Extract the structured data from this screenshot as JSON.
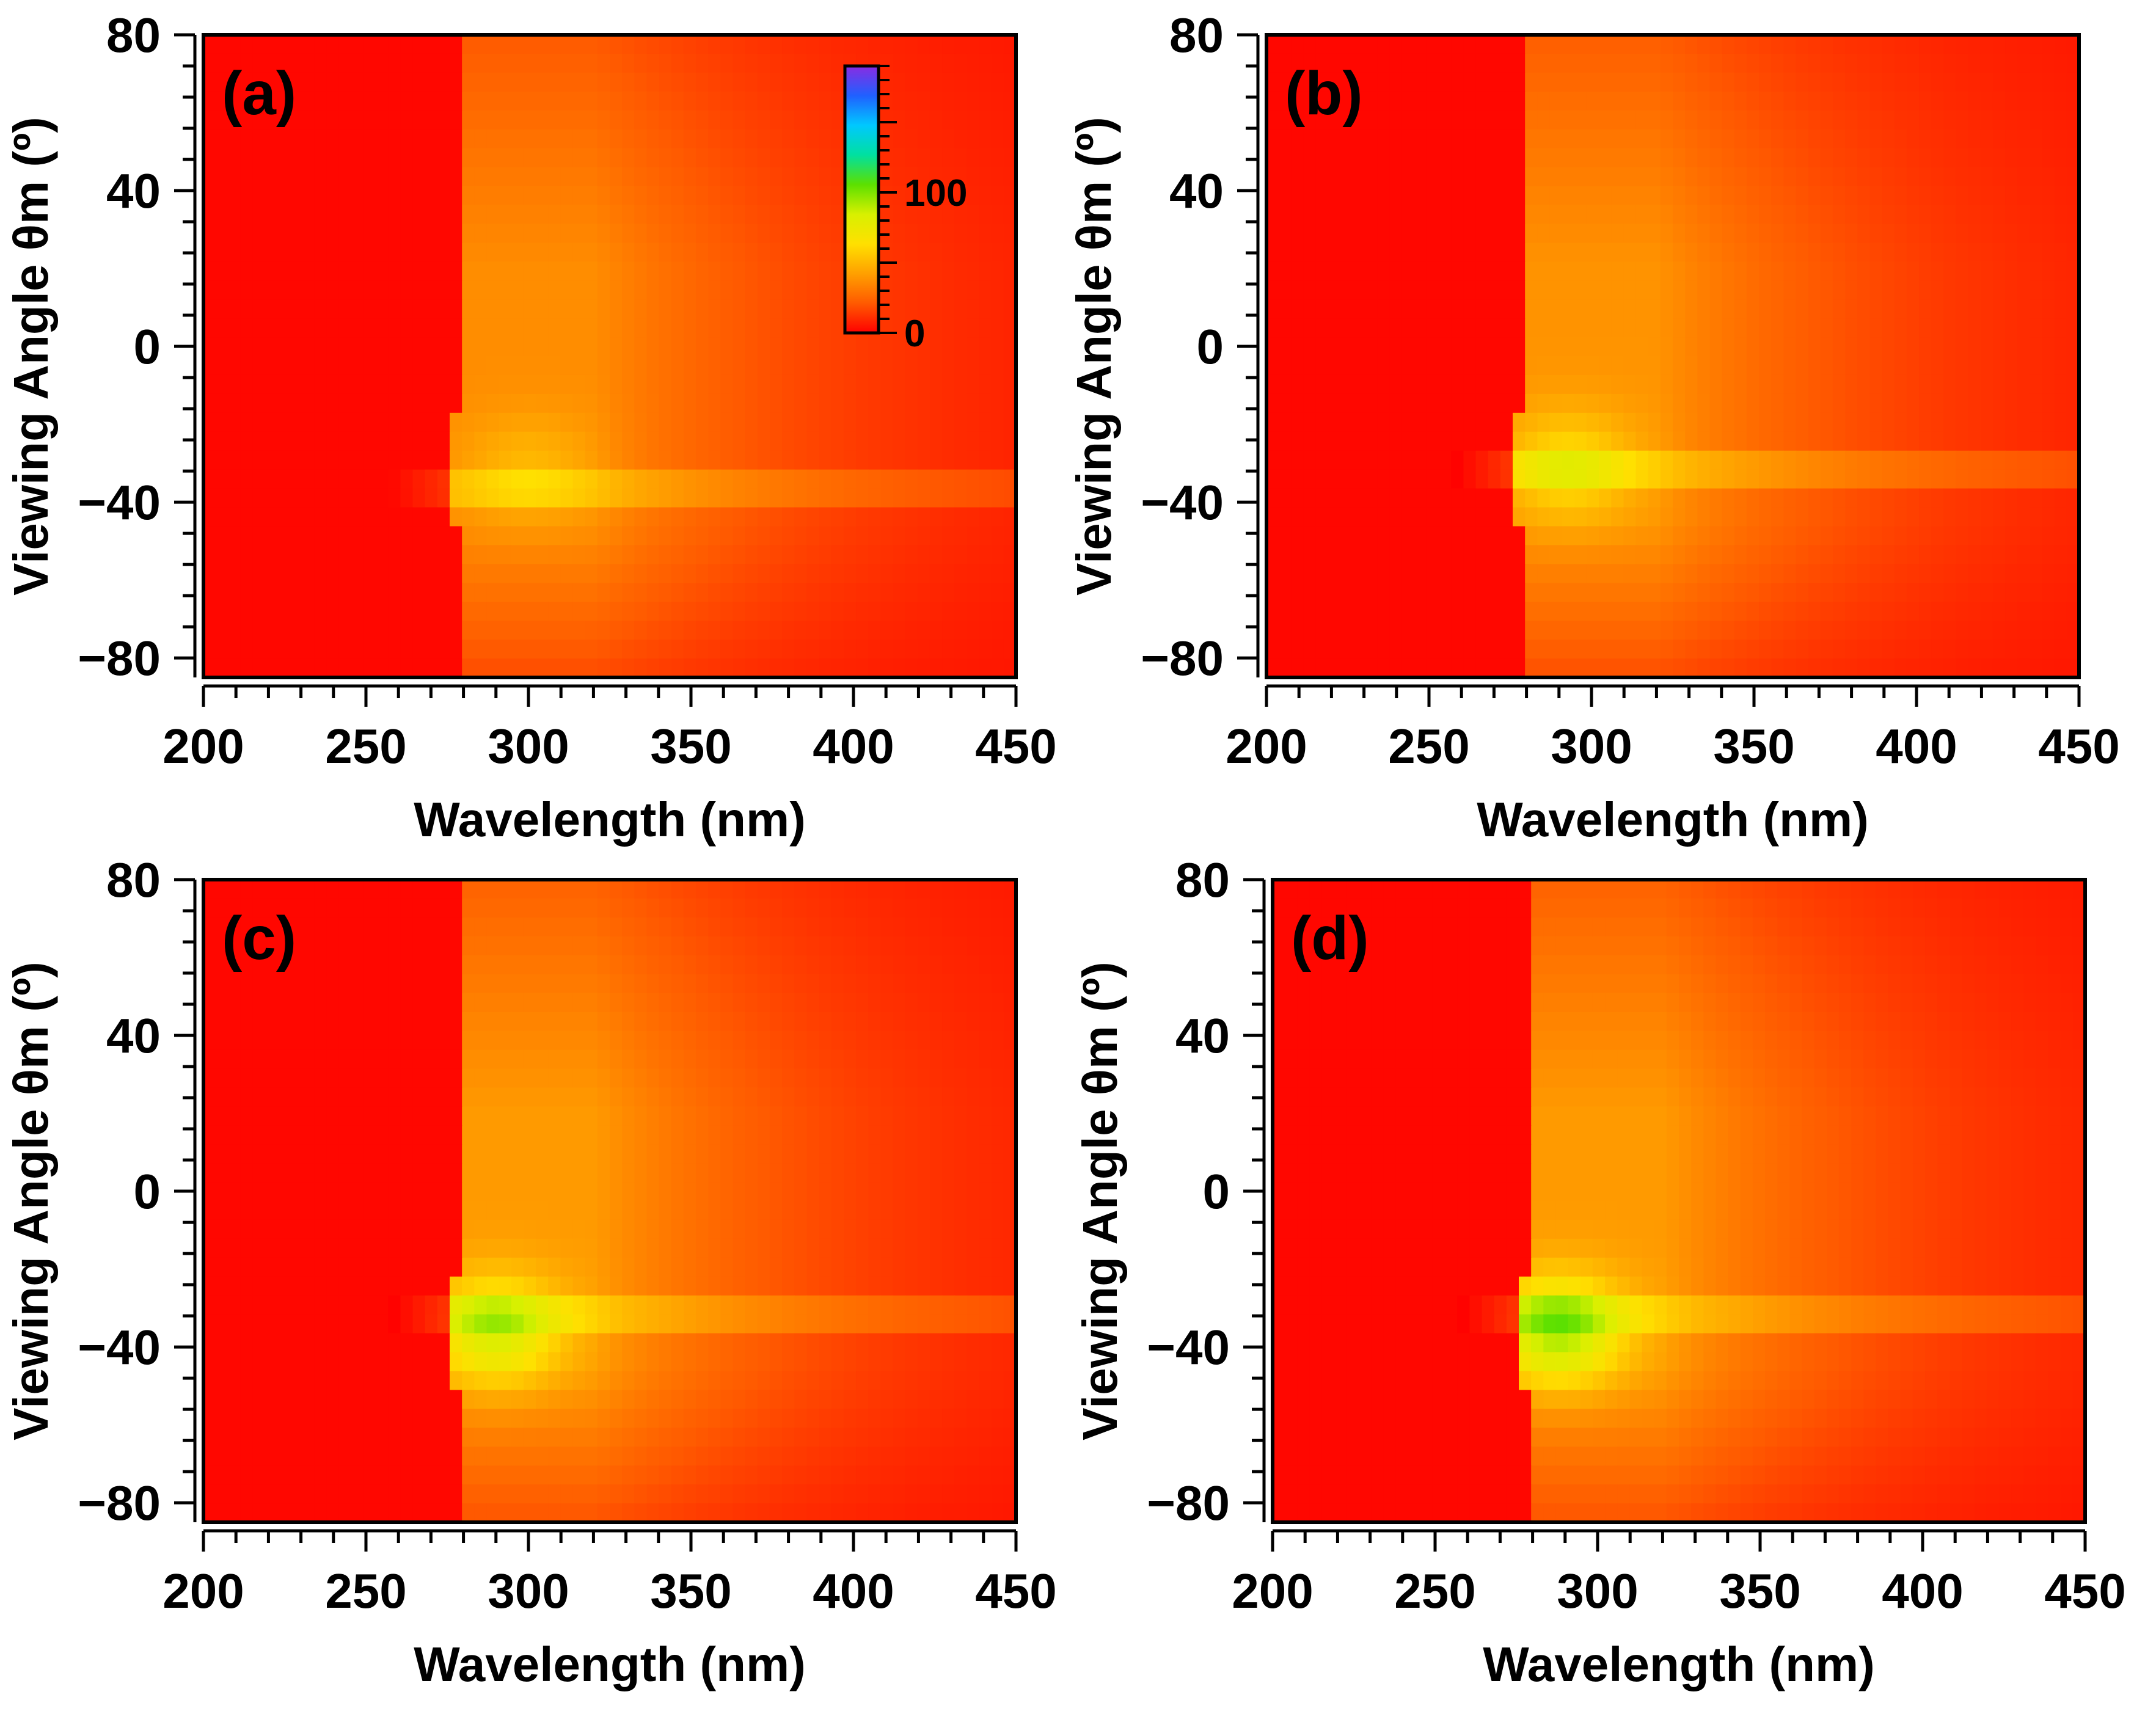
{
  "figure": {
    "colormap": {
      "stops": [
        "#ff0000",
        "#ff5a00",
        "#ffa000",
        "#ffe000",
        "#d8f000",
        "#5ce000",
        "#00e0a0",
        "#00c8ff",
        "#2060ff",
        "#8a2be2"
      ],
      "tick_labels": [
        "0",
        "100"
      ],
      "range": [
        0,
        190
      ]
    },
    "panel_keys": [
      "a",
      "b",
      "c",
      "d"
    ]
  },
  "chart_data": [
    {
      "type": "heatmap",
      "panel_label": "(a)",
      "xlabel": "Wavelength (nm)",
      "ylabel": "Viewing Angle θm (º)",
      "xlim": [
        200,
        450
      ],
      "ylim": [
        -85,
        80
      ],
      "x_ticks": [
        "200",
        "250",
        "300",
        "350",
        "400",
        "450"
      ],
      "y_ticks": [
        "80",
        "40",
        "0",
        "−40",
        "−80"
      ],
      "x_tick_values": [
        200,
        250,
        300,
        350,
        400,
        450
      ],
      "y_tick_values": [
        80,
        40,
        0,
        -40,
        -80
      ],
      "colorbar_shown": true,
      "colorbar_ticks": [
        "100",
        "0"
      ],
      "band_edge_nm": 276,
      "peak": {
        "wavelength": 300,
        "angle": -32,
        "value": 48
      },
      "plateau_value": 34,
      "stripe": {
        "angle": -35,
        "value": 22,
        "start_nm": 255
      },
      "background_value": 8
    },
    {
      "type": "heatmap",
      "panel_label": "(b)",
      "xlabel": "Wavelength (nm)",
      "ylabel": "Viewing Angle θm (º)",
      "xlim": [
        200,
        450
      ],
      "ylim": [
        -85,
        80
      ],
      "x_ticks": [
        "200",
        "250",
        "300",
        "350",
        "400",
        "450"
      ],
      "y_ticks": [
        "80",
        "40",
        "0",
        "−40",
        "−80"
      ],
      "x_tick_values": [
        200,
        250,
        300,
        350,
        400,
        450
      ],
      "y_tick_values": [
        80,
        40,
        0,
        -40,
        -80
      ],
      "colorbar_shown": false,
      "band_edge_nm": 276,
      "peak": {
        "wavelength": 293,
        "angle": -31,
        "value": 62
      },
      "plateau_value": 36,
      "stripe": {
        "angle": -32,
        "value": 24,
        "start_nm": 258
      },
      "background_value": 8
    },
    {
      "type": "heatmap",
      "panel_label": "(c)",
      "xlabel": "Wavelength (nm)",
      "ylabel": "Viewing Angle θm (º)",
      "xlim": [
        200,
        450
      ],
      "ylim": [
        -85,
        80
      ],
      "x_ticks": [
        "200",
        "250",
        "300",
        "350",
        "400",
        "450"
      ],
      "y_ticks": [
        "80",
        "40",
        "0",
        "−40",
        "−80"
      ],
      "x_tick_values": [
        200,
        250,
        300,
        350,
        400,
        450
      ],
      "y_tick_values": [
        80,
        40,
        0,
        -40,
        -80
      ],
      "colorbar_shown": false,
      "band_edge_nm": 276,
      "peak": {
        "wavelength": 290,
        "angle": -36,
        "value": 80
      },
      "plateau_value": 38,
      "stripe": {
        "angle": -33,
        "value": 24,
        "start_nm": 258
      },
      "background_value": 8
    },
    {
      "type": "heatmap",
      "panel_label": "(d)",
      "xlabel": "Wavelength (nm)",
      "ylabel": "Viewing Angle θm (º)",
      "xlim": [
        200,
        450
      ],
      "ylim": [
        -85,
        80
      ],
      "x_ticks": [
        "200",
        "250",
        "300",
        "350",
        "400",
        "450"
      ],
      "y_ticks": [
        "80",
        "40",
        "0",
        "−40",
        "−80"
      ],
      "x_tick_values": [
        200,
        250,
        300,
        350,
        400,
        450
      ],
      "y_tick_values": [
        80,
        40,
        0,
        -40,
        -80
      ],
      "colorbar_shown": false,
      "band_edge_nm": 276,
      "peak": {
        "wavelength": 288,
        "angle": -36,
        "value": 90
      },
      "plateau_value": 38,
      "stripe": {
        "angle": -33,
        "value": 24,
        "start_nm": 258
      },
      "background_value": 8
    }
  ]
}
